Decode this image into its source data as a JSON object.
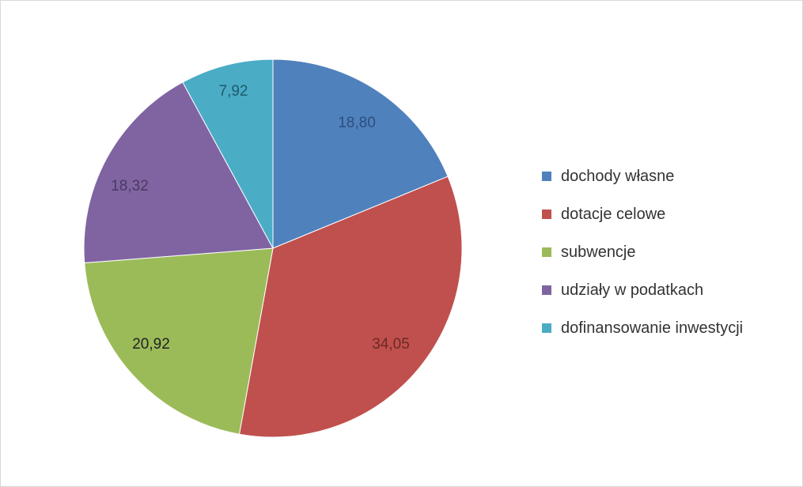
{
  "chart_data": {
    "type": "pie",
    "categories": [
      "dochody własne",
      "dotacje celowe",
      "subwencje",
      "udziały w podatkach",
      "dofinansowanie inwestycji"
    ],
    "values": [
      18.8,
      34.05,
      20.92,
      18.32,
      7.92
    ],
    "data_labels": [
      "18,80",
      "34,05",
      "20,92",
      "18,32",
      "7,92"
    ],
    "colors": [
      "#4f81bd",
      "#c0504d",
      "#9bbb59",
      "#8064a2",
      "#4bacc6"
    ],
    "legend_position": "right"
  }
}
